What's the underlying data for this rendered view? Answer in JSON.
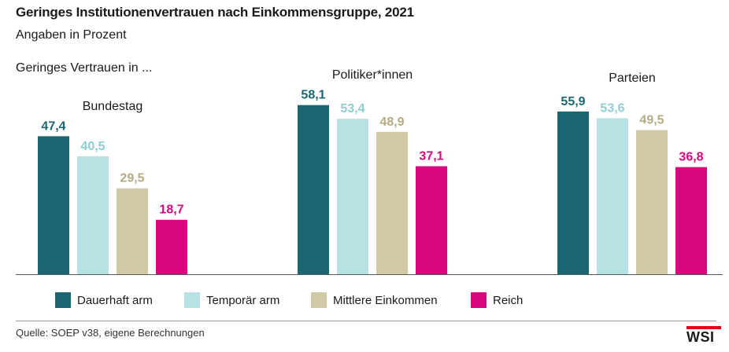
{
  "header": {
    "title": "Geringes Institutionenvertrauen nach Einkommensgruppe, 2021",
    "subtitle": "Angaben in Prozent",
    "prefix": "Geringes Vertrauen in ..."
  },
  "colors": {
    "series": [
      "#1b6671",
      "#b7e1e3",
      "#d1c9a6",
      "#d9077e"
    ],
    "label_colors": [
      "#1b6671",
      "#8ecdd2",
      "#b5ab84",
      "#d9077e"
    ],
    "axis": "#555555"
  },
  "legend": {
    "items": [
      {
        "label": "Dauerhaft arm",
        "color": "#1b6671"
      },
      {
        "label": "Temporär arm",
        "color": "#b7e1e3"
      },
      {
        "label": "Mittlere Einkommen",
        "color": "#d1c9a6"
      },
      {
        "label": "Reich",
        "color": "#d9077e"
      }
    ]
  },
  "chart_data": {
    "type": "bar",
    "categories": [
      "Bundestag",
      "Politiker*innen",
      "Parteien"
    ],
    "series": [
      {
        "name": "Dauerhaft arm",
        "values": [
          47.4,
          58.1,
          55.9
        ]
      },
      {
        "name": "Temporär arm",
        "values": [
          40.5,
          53.4,
          53.6
        ]
      },
      {
        "name": "Mittlere Einkommen",
        "values": [
          29.5,
          48.9,
          49.5
        ]
      },
      {
        "name": "Reich",
        "values": [
          18.7,
          37.1,
          36.8
        ]
      }
    ],
    "value_labels": [
      [
        "47,4",
        "58,1",
        "55,9"
      ],
      [
        "40,5",
        "53,4",
        "53,6"
      ],
      [
        "29,5",
        "48,9",
        "49,5"
      ],
      [
        "18,7",
        "37,1",
        "36,8"
      ]
    ],
    "title": "Geringes Institutionenvertrauen nach Einkommensgruppe, 2021",
    "subtitle": "Angaben in Prozent",
    "ylim": [
      0,
      60
    ],
    "grid": false,
    "legend_position": "bottom"
  },
  "footer": {
    "source": "Quelle: SOEP v38, eigene Berechnungen",
    "logo": "WSI"
  }
}
